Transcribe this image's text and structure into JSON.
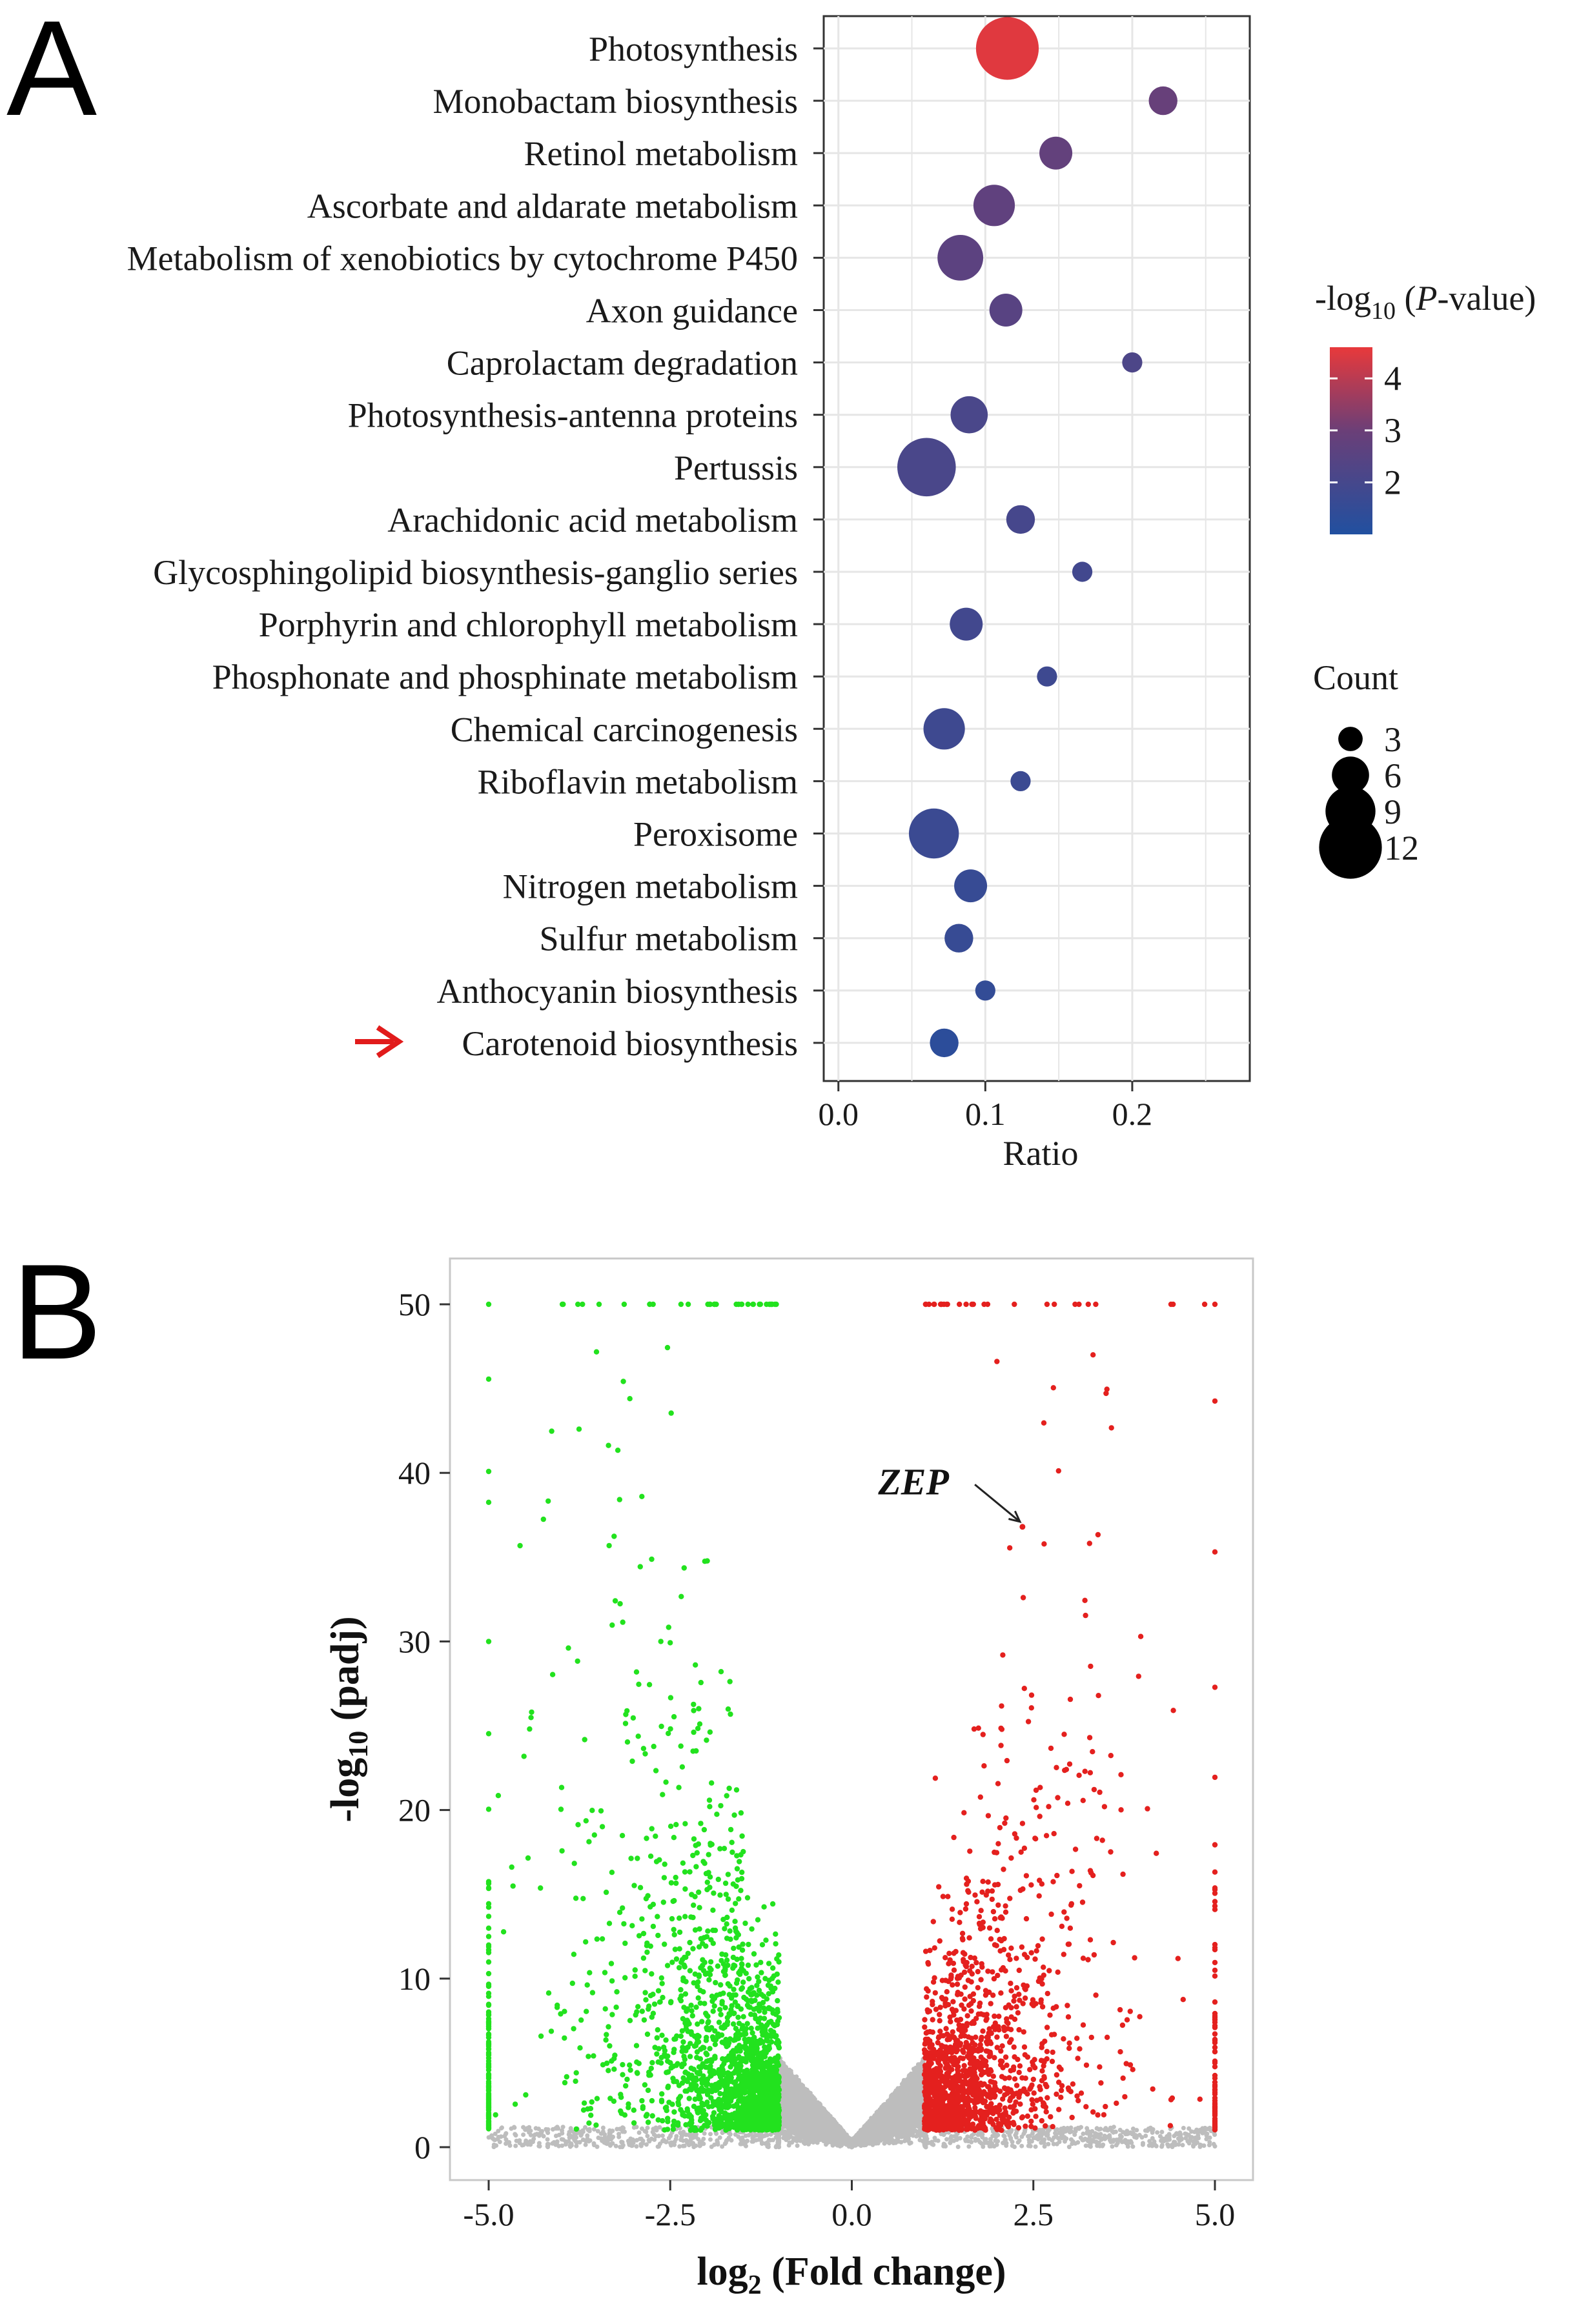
{
  "panelA": {
    "letter": "A",
    "chart_data": {
      "type": "scatter",
      "title": "",
      "xlabel": "Ratio",
      "ylabel": "",
      "xlim": [
        -0.01,
        0.28
      ],
      "xticks": [
        0.0,
        0.1,
        0.2
      ],
      "xtick_labels": [
        "0.0",
        "0.1",
        "0.2"
      ],
      "grid": true,
      "pathways": [
        {
          "name": "Photosynthesis",
          "ratio": 0.115,
          "count": 12,
          "neglog10p": 4.5
        },
        {
          "name": "Monobactam biosynthesis",
          "ratio": 0.221,
          "count": 4,
          "neglog10p": 2.9
        },
        {
          "name": "Retinol metabolism",
          "ratio": 0.148,
          "count": 5,
          "neglog10p": 2.8
        },
        {
          "name": "Ascorbate and aldarate metabolism",
          "ratio": 0.106,
          "count": 7,
          "neglog10p": 2.7
        },
        {
          "name": "Metabolism of xenobiotics by cytochrome P450",
          "ratio": 0.083,
          "count": 8,
          "neglog10p": 2.6
        },
        {
          "name": "Axon guidance",
          "ratio": 0.114,
          "count": 5,
          "neglog10p": 2.5
        },
        {
          "name": "Caprolactam degradation",
          "ratio": 0.2,
          "count": 2,
          "neglog10p": 2.2
        },
        {
          "name": "Photosynthesis-antenna proteins",
          "ratio": 0.089,
          "count": 6,
          "neglog10p": 2.1
        },
        {
          "name": "Pertussis",
          "ratio": 0.06,
          "count": 11,
          "neglog10p": 2.1
        },
        {
          "name": "Arachidonic acid metabolism",
          "ratio": 0.124,
          "count": 4,
          "neglog10p": 2.0
        },
        {
          "name": "Glycosphingolipid biosynthesis-ganglio series",
          "ratio": 0.166,
          "count": 2,
          "neglog10p": 1.9
        },
        {
          "name": "Porphyrin and chlorophyll metabolism",
          "ratio": 0.087,
          "count": 5,
          "neglog10p": 1.9
        },
        {
          "name": "Phosphonate and phosphinate metabolism",
          "ratio": 0.142,
          "count": 2,
          "neglog10p": 1.8
        },
        {
          "name": "Chemical carcinogenesis",
          "ratio": 0.072,
          "count": 7,
          "neglog10p": 1.8
        },
        {
          "name": "Riboflavin metabolism",
          "ratio": 0.124,
          "count": 2,
          "neglog10p": 1.7
        },
        {
          "name": "Peroxisome",
          "ratio": 0.065,
          "count": 9,
          "neglog10p": 1.7
        },
        {
          "name": "Nitrogen metabolism",
          "ratio": 0.09,
          "count": 5,
          "neglog10p": 1.6
        },
        {
          "name": "Sulfur metabolism",
          "ratio": 0.082,
          "count": 4,
          "neglog10p": 1.6
        },
        {
          "name": "Anthocyanin biosynthesis",
          "ratio": 0.1,
          "count": 2,
          "neglog10p": 1.5
        },
        {
          "name": "Carotenoid biosynthesis",
          "ratio": 0.072,
          "count": 4,
          "neglog10p": 1.3
        }
      ],
      "highlighted": "Carotenoid biosynthesis",
      "color_legend": {
        "title_prefix": "-log",
        "title_sub": "10",
        "title_open": " (",
        "title_italic": "P",
        "title_suffix": "-value)",
        "min": 1.0,
        "max": 4.6,
        "ticks": [
          2,
          3,
          4
        ],
        "tick_labels": [
          "2",
          "3",
          "4"
        ],
        "low_color": "#2150A0",
        "mid_color": "#6A3F78",
        "high_color": "#E8393B"
      },
      "size_legend": {
        "title": "Count",
        "values": [
          3,
          6,
          9,
          12
        ],
        "labels": [
          "3",
          "6",
          "9",
          "12"
        ]
      }
    }
  },
  "panelB": {
    "letter": "B",
    "chart_data": {
      "type": "scatter",
      "title": "",
      "xlabel_prefix": "log",
      "xlabel_sub": "2",
      "xlabel_suffix": " (Fold change)",
      "ylabel_prefix": "-log",
      "ylabel_sub": "10",
      "ylabel_suffix": " (padj)",
      "xlim": [
        -5.1,
        5.1
      ],
      "ylim": [
        -1,
        53.5
      ],
      "xticks": [
        -5.0,
        -2.5,
        0.0,
        2.5,
        5.0
      ],
      "xtick_labels": [
        "-5.0",
        "-2.5",
        "0.0",
        "2.5",
        "5.0"
      ],
      "yticks": [
        0,
        10,
        20,
        30,
        40,
        50
      ],
      "ytick_labels": [
        "0",
        "10",
        "20",
        "30",
        "40",
        "50"
      ],
      "fold_change_threshold": 1.0,
      "cap_abs_log2fc": 5.0,
      "cap_neglog10_padj": 50,
      "up_color": "#E4201E",
      "down_color": "#22E21E",
      "ns_color": "#BDBDBD",
      "annotation": {
        "label": "ZEP",
        "x": 2.35,
        "y": 36.8,
        "label_x": 0.85,
        "label_y": 39.5
      },
      "approx_counts": {
        "down": 2200,
        "up": 1700,
        "ns": 7000
      }
    }
  }
}
